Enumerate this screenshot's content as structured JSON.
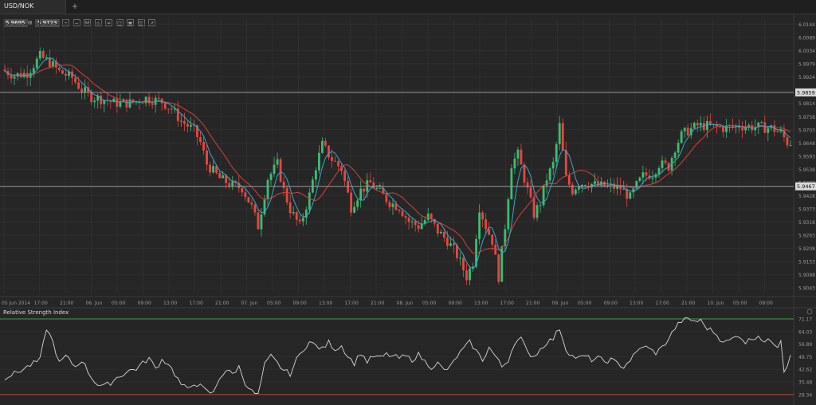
{
  "tab": {
    "label": "USD/NOK",
    "add_label": "+"
  },
  "price_readout": {
    "bid": "5.9695",
    "separator": "⊠",
    "ask": "5.9723"
  },
  "toolbar": [
    {
      "name": "zoom-in-icon",
      "glyph": "+"
    },
    {
      "name": "zoom-out-icon",
      "glyph": "−"
    },
    {
      "name": "timeframe-icon",
      "glyph": "M"
    },
    {
      "name": "chart-type-icon",
      "glyph": "⌂"
    },
    {
      "name": "indicators-icon",
      "glyph": "≡"
    },
    {
      "name": "template-icon",
      "glyph": "□"
    },
    {
      "name": "save-icon",
      "glyph": "▣"
    },
    {
      "name": "settings-icon",
      "glyph": "◫"
    },
    {
      "name": "drawing-icon",
      "glyph": "↗"
    }
  ],
  "colors": {
    "background": "#262626",
    "grid": "#2f2f2f",
    "bull": "#3dbd72",
    "bear": "#e8473f",
    "ma_fast": "#3ba6c8",
    "ma_slow": "#d2423c",
    "hline": "#9a9a9a",
    "rsi_line": "#d6d6d6",
    "rsi_upper": "#3fa04a",
    "rsi_lower": "#c0453c",
    "text": "#9a9a9a"
  },
  "chart_data": [
    {
      "type": "candlestick",
      "title": "USD/NOK",
      "y_ticks": [
        "6.0144",
        "6.0089",
        "6.0034",
        "5.9979",
        "5.9924",
        "5.9869",
        "5.9814",
        "5.9758",
        "5.9703",
        "5.9648",
        "5.9593",
        "5.9538",
        "5.9483",
        "5.9428",
        "5.9373",
        "5.9318",
        "5.9263",
        "5.9208",
        "5.9153",
        "5.9098",
        "5.9043"
      ],
      "ylim": [
        5.902,
        6.0165
      ],
      "x_ticks": [
        "05 Jun 2014",
        "17:00",
        "21:00",
        "06. Jun",
        "05:00",
        "09:00",
        "13:00",
        "17:00",
        "21:00",
        "07. Jun",
        "05:00",
        "09:00",
        "13:00",
        "17:00",
        "21:00",
        "08. Jun",
        "05:00",
        "09:00",
        "13:00",
        "17:00",
        "21:00",
        "09. Jun",
        "05:00",
        "09:00",
        "13:00",
        "17:00",
        "21:00",
        "10. Jun",
        "05:00",
        "09:00"
      ],
      "horizontal_lines": [
        {
          "label": "5.9859",
          "value": 5.9859
        },
        {
          "label": "5.9467",
          "value": 5.9467
        }
      ],
      "anchors": [
        [
          0,
          5.9955
        ],
        [
          4,
          5.993
        ],
        [
          8,
          5.994
        ],
        [
          12,
          6.001
        ],
        [
          15,
          5.9985
        ],
        [
          18,
          5.9945
        ],
        [
          22,
          5.992
        ],
        [
          25,
          5.987
        ],
        [
          28,
          5.984
        ],
        [
          32,
          5.983
        ],
        [
          35,
          5.9815
        ],
        [
          40,
          5.9815
        ],
        [
          45,
          5.9835
        ],
        [
          50,
          5.982
        ],
        [
          53,
          5.979
        ],
        [
          56,
          5.974
        ],
        [
          60,
          5.97
        ],
        [
          62,
          5.965
        ],
        [
          64,
          5.956
        ],
        [
          68,
          5.95
        ],
        [
          72,
          5.947
        ],
        [
          75,
          5.946
        ],
        [
          78,
          5.938
        ],
        [
          80,
          5.93
        ],
        [
          83,
          5.95
        ],
        [
          86,
          5.956
        ],
        [
          88,
          5.945
        ],
        [
          90,
          5.937
        ],
        [
          93,
          5.93
        ],
        [
          96,
          5.943
        ],
        [
          98,
          5.955
        ],
        [
          100,
          5.964
        ],
        [
          103,
          5.958
        ],
        [
          106,
          5.954
        ],
        [
          109,
          5.938
        ],
        [
          112,
          5.945
        ],
        [
          115,
          5.948
        ],
        [
          118,
          5.944
        ],
        [
          121,
          5.94
        ],
        [
          124,
          5.938
        ],
        [
          127,
          5.932
        ],
        [
          130,
          5.93
        ],
        [
          133,
          5.934
        ],
        [
          136,
          5.928
        ],
        [
          139,
          5.924
        ],
        [
          142,
          5.918
        ],
        [
          145,
          5.909
        ],
        [
          147,
          5.915
        ],
        [
          149,
          5.938
        ],
        [
          151,
          5.93
        ],
        [
          153,
          5.924
        ],
        [
          155,
          5.909
        ],
        [
          157,
          5.93
        ],
        [
          159,
          5.956
        ],
        [
          161,
          5.96
        ],
        [
          164,
          5.945
        ],
        [
          166,
          5.935
        ],
        [
          168,
          5.94
        ],
        [
          170,
          5.95
        ],
        [
          172,
          5.956
        ],
        [
          174,
          5.972
        ],
        [
          176,
          5.95
        ],
        [
          178,
          5.945
        ],
        [
          180,
          5.948
        ],
        [
          183,
          5.948
        ],
        [
          186,
          5.947
        ],
        [
          190,
          5.9465
        ],
        [
          193,
          5.946
        ],
        [
          196,
          5.942
        ],
        [
          198,
          5.947
        ],
        [
          200,
          5.951
        ],
        [
          203,
          5.952
        ],
        [
          205,
          5.956
        ],
        [
          208,
          5.955
        ],
        [
          210,
          5.963
        ],
        [
          212,
          5.968
        ],
        [
          214,
          5.97
        ],
        [
          217,
          5.972
        ],
        [
          220,
          5.972
        ],
        [
          225,
          5.971
        ],
        [
          230,
          5.972
        ],
        [
          235,
          5.9715
        ],
        [
          240,
          5.971
        ],
        [
          243,
          5.969
        ],
        [
          245,
          5.965
        ]
      ],
      "candle_count": 246,
      "ma_fast_period": 5,
      "ma_slow_period": 12
    },
    {
      "type": "line",
      "title": "Relative Strength Index",
      "y_ticks": [
        "71.17",
        "64.03",
        "56.89",
        "49.75",
        "42.62",
        "35.48",
        "28.34"
      ],
      "ylim": [
        26.0,
        73.0
      ],
      "upper_level": 71.17,
      "lower_level": 28.34,
      "series": [
        {
          "name": "Relative Strength Index",
          "anchors": [
            [
              0,
              38
            ],
            [
              4,
              41
            ],
            [
              8,
              45
            ],
            [
              11,
              48
            ],
            [
              13,
              66
            ],
            [
              15,
              58
            ],
            [
              17,
              46
            ],
            [
              19,
              50
            ],
            [
              22,
              44
            ],
            [
              24,
              48
            ],
            [
              27,
              38
            ],
            [
              29,
              34
            ],
            [
              31,
              33
            ],
            [
              33,
              35
            ],
            [
              35,
              38
            ],
            [
              37,
              40
            ],
            [
              39,
              42
            ],
            [
              41,
              43
            ],
            [
              43,
              46
            ],
            [
              45,
              49
            ],
            [
              47,
              43
            ],
            [
              49,
              48
            ],
            [
              51,
              46
            ],
            [
              53,
              40
            ],
            [
              55,
              34
            ],
            [
              57,
              31
            ],
            [
              59,
              35
            ],
            [
              61,
              33
            ],
            [
              63,
              30
            ],
            [
              65,
              29
            ],
            [
              67,
              38
            ],
            [
              69,
              42
            ],
            [
              71,
              40
            ],
            [
              73,
              44
            ],
            [
              75,
              35
            ],
            [
              77,
              30
            ],
            [
              79,
              28
            ],
            [
              81,
              45
            ],
            [
              83,
              50
            ],
            [
              85,
              46
            ],
            [
              87,
              42
            ],
            [
              89,
              40
            ],
            [
              91,
              48
            ],
            [
              93,
              54
            ],
            [
              95,
              58
            ],
            [
              97,
              56
            ],
            [
              99,
              54
            ],
            [
              101,
              58
            ],
            [
              103,
              54
            ],
            [
              105,
              56
            ],
            [
              107,
              50
            ],
            [
              109,
              46
            ],
            [
              111,
              52
            ],
            [
              113,
              47
            ],
            [
              115,
              50
            ],
            [
              117,
              49
            ],
            [
              119,
              51
            ],
            [
              121,
              50
            ],
            [
              123,
              49
            ],
            [
              125,
              50
            ],
            [
              127,
              48
            ],
            [
              129,
              51
            ],
            [
              131,
              47
            ],
            [
              133,
              44
            ],
            [
              135,
              46
            ],
            [
              137,
              42
            ],
            [
              139,
              44
            ],
            [
              141,
              50
            ],
            [
              143,
              54
            ],
            [
              145,
              58
            ],
            [
              147,
              53
            ],
            [
              149,
              48
            ],
            [
              151,
              55
            ],
            [
              153,
              50
            ],
            [
              155,
              44
            ],
            [
              157,
              48
            ],
            [
              159,
              58
            ],
            [
              161,
              60
            ],
            [
              163,
              52
            ],
            [
              165,
              50
            ],
            [
              167,
              54
            ],
            [
              169,
              58
            ],
            [
              171,
              60
            ],
            [
              173,
              66
            ],
            [
              175,
              54
            ],
            [
              177,
              50
            ],
            [
              179,
              49
            ],
            [
              181,
              50
            ],
            [
              183,
              48
            ],
            [
              185,
              49
            ],
            [
              187,
              47
            ],
            [
              189,
              48
            ],
            [
              191,
              46
            ],
            [
              193,
              44
            ],
            [
              195,
              48
            ],
            [
              197,
              52
            ],
            [
              199,
              56
            ],
            [
              201,
              54
            ],
            [
              203,
              52
            ],
            [
              205,
              55
            ],
            [
              207,
              60
            ],
            [
              209,
              66
            ],
            [
              211,
              70
            ],
            [
              213,
              71
            ],
            [
              215,
              70
            ],
            [
              217,
              70
            ],
            [
              219,
              66
            ],
            [
              221,
              64
            ],
            [
              223,
              60
            ],
            [
              225,
              58
            ],
            [
              227,
              60
            ],
            [
              229,
              62
            ],
            [
              231,
              58
            ],
            [
              233,
              60
            ],
            [
              235,
              62
            ],
            [
              237,
              58
            ],
            [
              239,
              59
            ],
            [
              241,
              56
            ],
            [
              242,
              60
            ],
            [
              243,
              42
            ],
            [
              244,
              45
            ],
            [
              245,
              52
            ]
          ]
        }
      ]
    }
  ]
}
